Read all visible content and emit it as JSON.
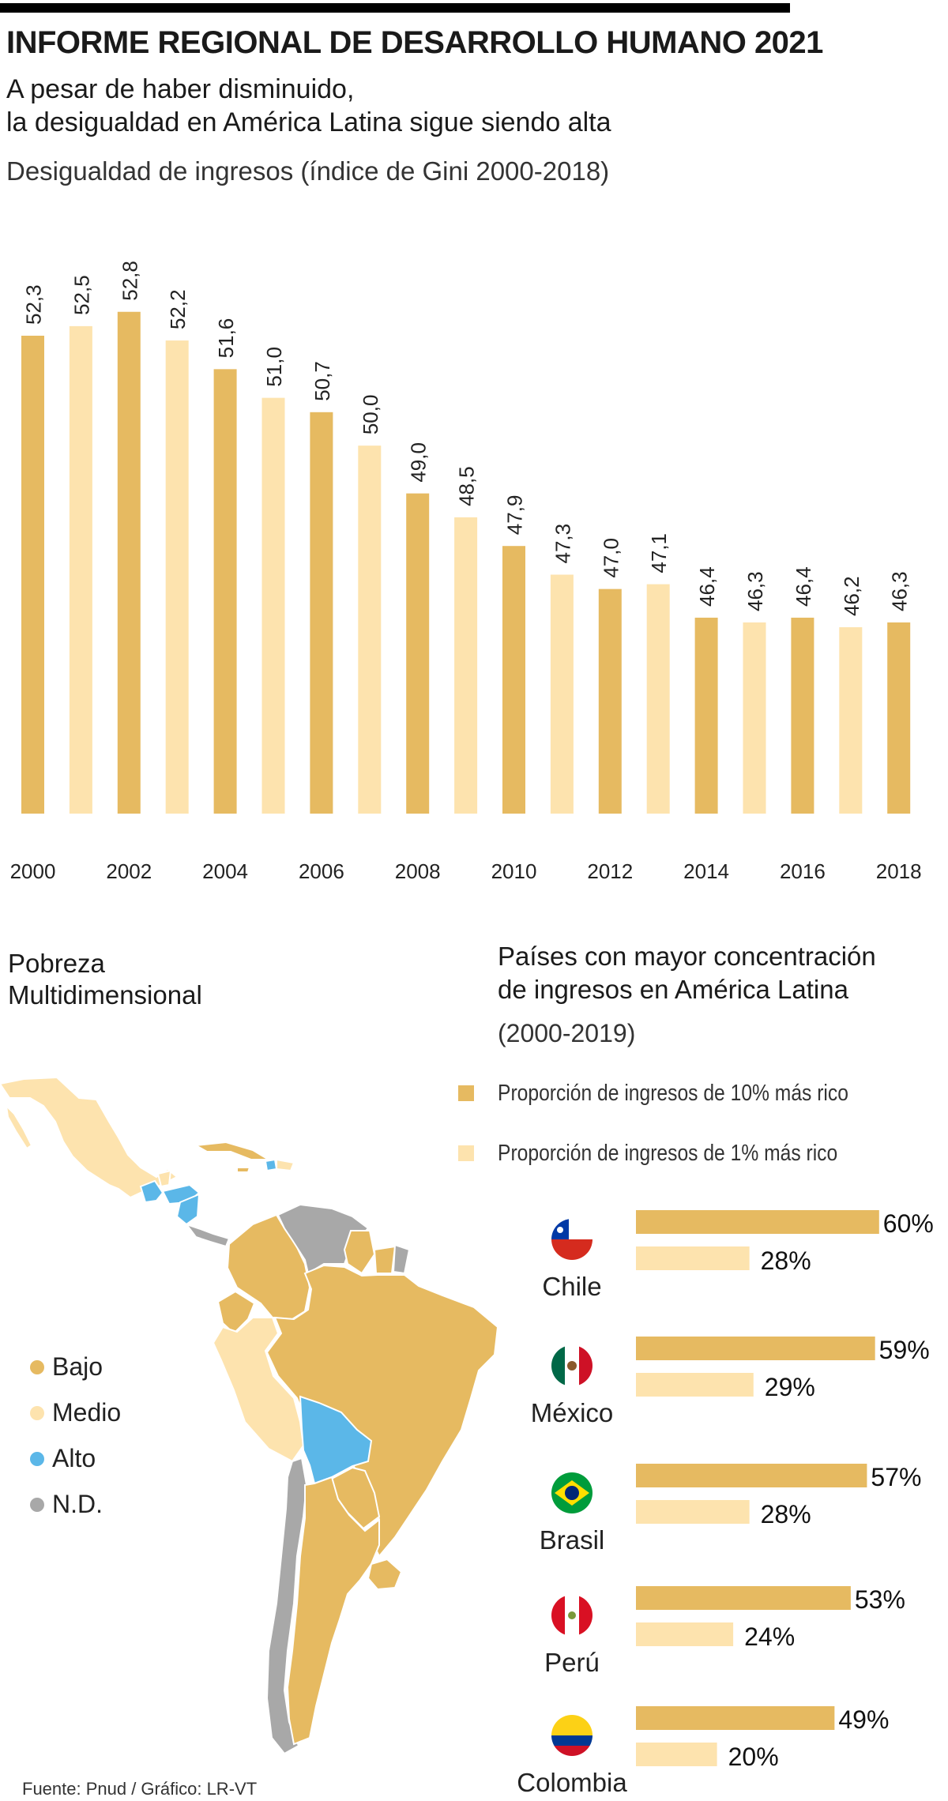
{
  "header": {
    "title": "INFORME REGIONAL DE DESARROLLO HUMANO 2021",
    "subtitle_line1": "A pesar de haber disminuido,",
    "subtitle_line2": "la desigualdad en América Latina sigue siendo alta"
  },
  "colors": {
    "dark": "#E6BA61",
    "light": "#FDE3AE",
    "alto": "#5BB7E8",
    "nd": "#A8A8A8"
  },
  "chart_data": [
    {
      "type": "bar",
      "title": "Desigualdad de ingresos (índice de Gini 2000-2018)",
      "categories": [
        "2000",
        "2001",
        "2002",
        "2003",
        "2004",
        "2005",
        "2006",
        "2007",
        "2008",
        "2009",
        "2010",
        "2011",
        "2012",
        "2013",
        "2014",
        "2015",
        "2016",
        "2017",
        "2018"
      ],
      "values": [
        52.3,
        52.5,
        52.8,
        52.2,
        51.6,
        51.0,
        50.7,
        50.0,
        49.0,
        48.5,
        47.9,
        47.3,
        47.0,
        47.1,
        46.4,
        46.3,
        46.4,
        46.2,
        46.3
      ],
      "value_labels": [
        "52,3",
        "52,5",
        "52,8",
        "52,2",
        "51,6",
        "51,0",
        "50,7",
        "50,0",
        "49,0",
        "48,5",
        "47,9",
        "47,3",
        "47,0",
        "47,1",
        "46,4",
        "46,3",
        "46,4",
        "46,2",
        "46,3"
      ],
      "tick_labels": [
        "2000",
        "2002",
        "2004",
        "2006",
        "2008",
        "2010",
        "2012",
        "2014",
        "2016",
        "2018"
      ]
    },
    {
      "type": "bar",
      "title": "Países con mayor concentración de ingresos en América Latina",
      "period": "(2000-2019)",
      "categories": [
        "Chile",
        "México",
        "Brasil",
        "Perú",
        "Colombia"
      ],
      "series": [
        {
          "name": "Proporción de ingresos de 10% más rico",
          "values": [
            60,
            59,
            57,
            53,
            49
          ],
          "labels": [
            "60%",
            "59%",
            "57%",
            "53%",
            "49%"
          ]
        },
        {
          "name": "Proporción de ingresos de 1% más rico",
          "values": [
            28,
            29,
            28,
            24,
            20
          ],
          "labels": [
            "28%",
            "29%",
            "28%",
            "24%",
            "20%"
          ]
        }
      ]
    }
  ],
  "poverty": {
    "title_line1": "Pobreza",
    "title_line2": "Multidimensional",
    "legend": [
      "Bajo",
      "Medio",
      "Alto",
      "N.D."
    ]
  },
  "concentration": {
    "title_line1": "Países con mayor concentración",
    "title_line2": "de ingresos en América Latina",
    "period": "(2000-2019)",
    "legend_top10": "Proporción de ingresos de 10% más rico",
    "legend_top1": "Proporción de ingresos de 1% más rico"
  },
  "source": "Fuente: Pnud / Gráfico: LR-VT"
}
